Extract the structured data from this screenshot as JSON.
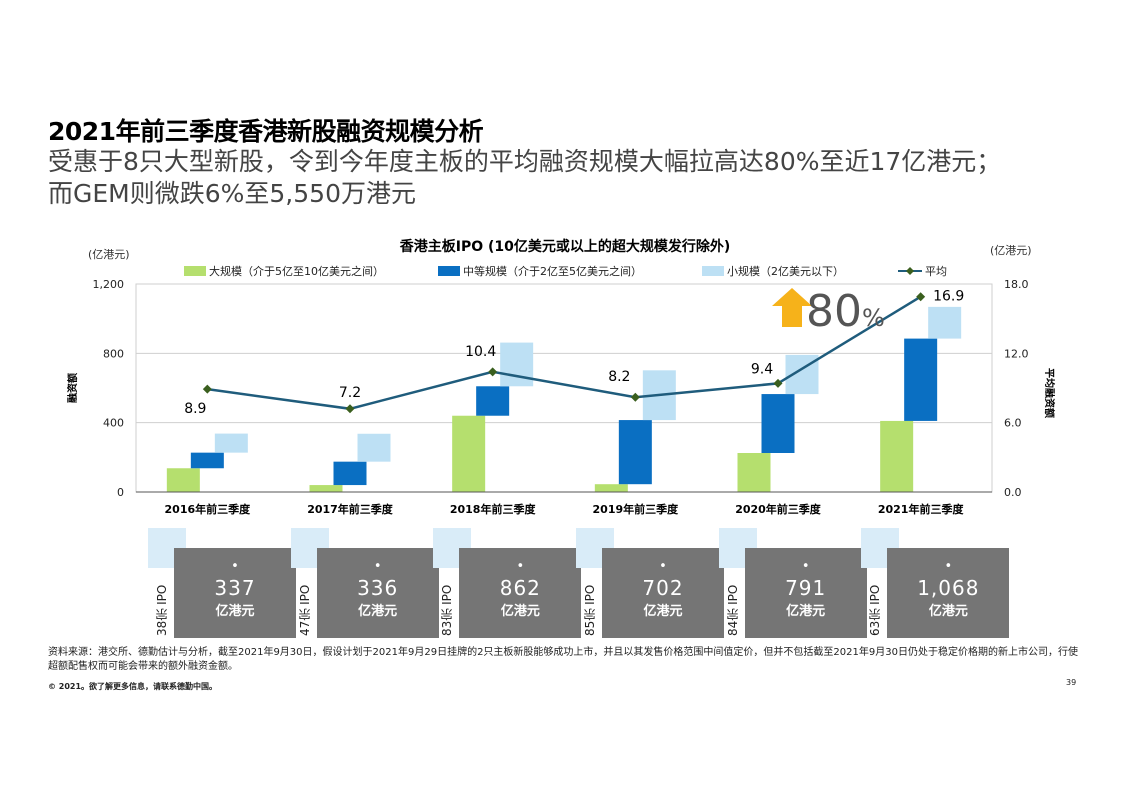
{
  "title": "2021年前三季度香港新股融资规模分析",
  "subtitle_line1": "受惠于8只大型新股，令到今年度主板的平均融资规模大幅拉高达80%至近17亿港元；",
  "subtitle_line2": "而GEM则微跌6%至5,550万港元",
  "chart_data": {
    "type": "bar",
    "title": "香港主板IPO (10亿美元或以上的超大规模发行除外)",
    "left_unit": "(亿港元)",
    "right_unit": "(亿港元)",
    "ylabel": "融资额",
    "ylabel_right": "平均融资额",
    "ylim": [
      0,
      1200
    ],
    "yticks": [
      "0",
      "400",
      "800",
      "1,200"
    ],
    "y2lim": [
      0,
      18
    ],
    "y2ticks": [
      "0.0",
      "6.0",
      "12.0",
      "18.0"
    ],
    "categories": [
      "2016年前三季度",
      "2017年前三季度",
      "2018年前三季度",
      "2019年前三季度",
      "2020年前三季度",
      "2021年前三季度"
    ],
    "series": [
      {
        "name": "大规模（介于5亿至10亿美元之间）",
        "color": "#b5df6e",
        "values": [
          137,
          40,
          440,
          45,
          225,
          410
        ]
      },
      {
        "name": "中等规模（介于2亿至5亿美元之间）",
        "color": "#0a6fc2",
        "values": [
          90,
          135,
          170,
          370,
          340,
          475
        ]
      },
      {
        "name": "小规模（2亿美元以下）",
        "color": "#bde0f4",
        "values": [
          110,
          161,
          252,
          287,
          226,
          183
        ]
      }
    ],
    "average": {
      "name": "平均",
      "line_color": "#1f5c7c",
      "marker_color": "#3a5f1e",
      "values": [
        8.9,
        7.2,
        10.4,
        8.2,
        9.4,
        16.9
      ],
      "labels": [
        "8.9",
        "7.2",
        "10.4",
        "8.2",
        "9.4",
        "16.9"
      ]
    },
    "growth_label": "80",
    "growth_suffix": "%",
    "arrow_color": "#f6b21a"
  },
  "ipo_summary": [
    {
      "count": "38宗 IPO",
      "amount": "337",
      "unit": "亿港元"
    },
    {
      "count": "47宗 IPO",
      "amount": "336",
      "unit": "亿港元"
    },
    {
      "count": "83宗 IPO",
      "amount": "862",
      "unit": "亿港元"
    },
    {
      "count": "85宗 IPO",
      "amount": "702",
      "unit": "亿港元"
    },
    {
      "count": "84宗 IPO",
      "amount": "791",
      "unit": "亿港元"
    },
    {
      "count": "63宗 IPO",
      "amount": "1,068",
      "unit": "亿港元"
    }
  ],
  "ipo_dot": "•",
  "source_note": "资料来源：港交所、德勤估计与分析，截至2021年9月30日，假设计划于2021年9月29日挂牌的2只主板新股能够成功上市，并且以其发售价格范围中间值定价，但并不包括截至2021年9月30日仍处于稳定价格期的新上市公司，行使超额配售权而可能会带来的额外融资金额。",
  "copyright": "© 2021。欲了解更多信息，请联系德勤中国。",
  "page_number": "39"
}
